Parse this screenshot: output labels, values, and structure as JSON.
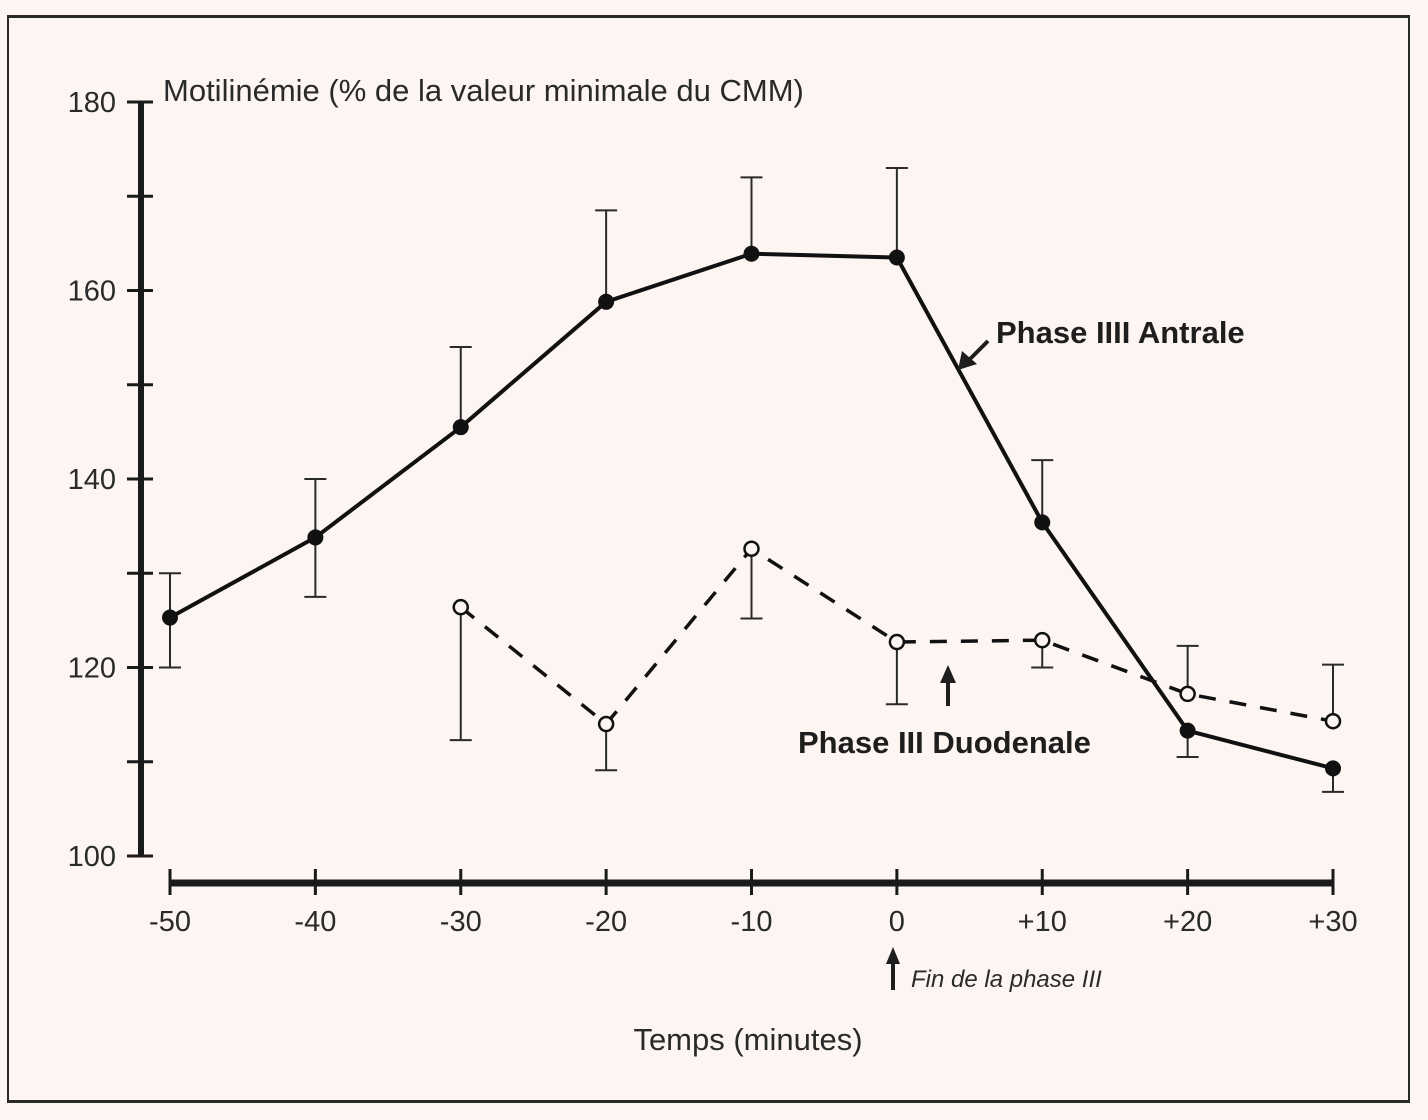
{
  "chart_data": {
    "type": "line",
    "title": "Motilinémie (% de la valeur minimale du CMM)",
    "xlabel": "Temps (minutes)",
    "ylabel": "Motilinémie (% de la valeur minimale du CMM)",
    "x": [
      -50,
      -40,
      -30,
      -20,
      -10,
      0,
      10,
      20,
      30
    ],
    "x_tick_labels": [
      "-50",
      "-40",
      "-30",
      "-20",
      "-10",
      "0",
      "+10",
      "+20",
      "+30"
    ],
    "xlim": [
      -50,
      30
    ],
    "ylim": [
      100,
      180
    ],
    "y_ticks": [
      100,
      110,
      120,
      130,
      140,
      150,
      160,
      170,
      180
    ],
    "y_tick_labels": [
      "100",
      "120",
      "140",
      "160",
      "180"
    ],
    "y_labeled_ticks": [
      100,
      120,
      140,
      160,
      180
    ],
    "grid": false,
    "series": [
      {
        "name": "Phase IIII Antrale",
        "style": "solid",
        "marker": "filled-circle",
        "x": [
          -50,
          -40,
          -30,
          -20,
          -10,
          0,
          10,
          20,
          30
        ],
        "values": [
          125.3,
          133.8,
          145.5,
          158.8,
          163.9,
          163.5,
          135.4,
          113.3,
          109.3
        ],
        "error_upper": [
          130,
          140,
          154,
          168.5,
          172,
          173,
          142,
          null,
          null
        ],
        "error_lower": [
          120,
          127.5,
          null,
          null,
          null,
          null,
          null,
          110.5,
          106.8
        ]
      },
      {
        "name": "Phase III Duodenale",
        "style": "dashed",
        "marker": "open-circle",
        "x": [
          -30,
          -20,
          -10,
          0,
          10,
          20,
          30
        ],
        "values": [
          126.4,
          114.0,
          132.6,
          122.7,
          122.9,
          117.2,
          114.3
        ],
        "error_upper": [
          null,
          null,
          null,
          null,
          null,
          122.3,
          120.3
        ],
        "error_lower": [
          112.3,
          109.1,
          125.2,
          116.1,
          120.0,
          null,
          null
        ]
      }
    ],
    "annotations": [
      {
        "text": "Phase IIII Antrale",
        "bold": true,
        "arrow_to_series": "Phase IIII Antrale"
      },
      {
        "text": "Phase III Duodenale",
        "bold": true,
        "arrow_up_at_x": 4
      },
      {
        "text": "Fin de la phase III",
        "italic": true,
        "arrow_up_at_x": 0
      }
    ]
  }
}
